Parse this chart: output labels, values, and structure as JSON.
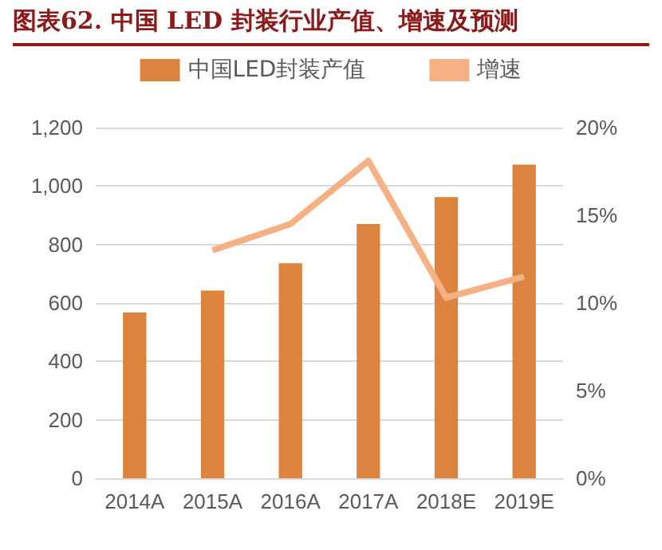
{
  "chart_data": {
    "type": "bar",
    "title": "图表62.  中国 LED 封装行业产值、增速及预测",
    "categories": [
      "2014A",
      "2015A",
      "2016A",
      "2017A",
      "2018E",
      "2019E"
    ],
    "series": [
      {
        "name": "中国LED封装产值",
        "color": "#dc843e",
        "values": [
          567,
          642,
          736,
          870,
          962,
          1073
        ]
      },
      {
        "name": "增速",
        "type": "line",
        "axis": "y2",
        "color": "#f5b183",
        "values": [
          null,
          13.0,
          14.5,
          18.1,
          10.3,
          11.5
        ]
      }
    ],
    "ylim": [
      0,
      1200
    ],
    "yticks": [
      0,
      200,
      400,
      600,
      800,
      {
        "value": 1000,
        "label": "1,000"
      },
      {
        "value": 1200,
        "label": "1,200"
      }
    ],
    "y2lim": [
      0,
      20
    ],
    "y2ticks": [
      {
        "value": 0,
        "label": "0%"
      },
      {
        "value": 5,
        "label": "5%"
      },
      {
        "value": 10,
        "label": "10%"
      },
      {
        "value": 15,
        "label": "15%"
      },
      {
        "value": 20,
        "label": "20%"
      }
    ],
    "grid": "y",
    "legend": "top",
    "marker": "none"
  }
}
